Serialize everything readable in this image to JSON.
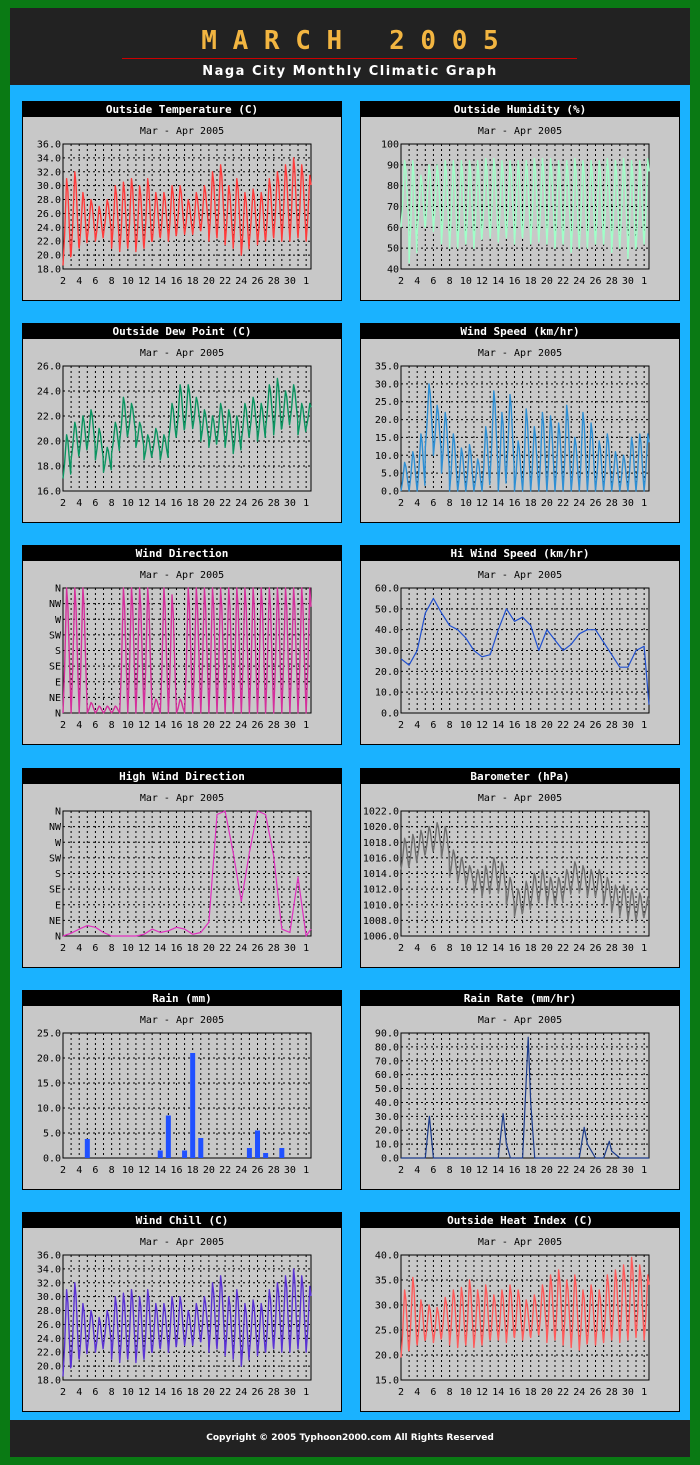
{
  "header": {
    "title": "M A R C H   2 0 0 5",
    "subtitle": "Naga City Monthly Climatic Graph"
  },
  "footer": {
    "copyright": "Copyright © 2005  Typhoon2000.com   All Rights Reserved"
  },
  "colors": {
    "background": "#0a7a14",
    "panel_area": "#1ab2ff",
    "header": "#222222",
    "title": "#f2b541"
  },
  "chart_data": [
    {
      "id": "temp",
      "title": "Outside Temperature (C)",
      "subtitle": "Mar - Apr  2005",
      "type": "line",
      "color": "#ff3b3b",
      "x_ticks": [
        "2",
        "4",
        "6",
        "8",
        "10",
        "12",
        "14",
        "16",
        "18",
        "20",
        "22",
        "24",
        "26",
        "28",
        "30",
        "1"
      ],
      "y_ticks": [
        "18.0",
        "20.0",
        "22.0",
        "24.0",
        "26.0",
        "28.0",
        "30.0",
        "32.0",
        "34.0",
        "36.0"
      ],
      "ylim": [
        18,
        36
      ],
      "grid": true,
      "daily_low": [
        18.5,
        20.0,
        21.0,
        22.5,
        22.0,
        23.0,
        21.0,
        20.5,
        21.0,
        20.5,
        21.0,
        22.0,
        22.5,
        22.0,
        23.0,
        23.0,
        23.0,
        23.5,
        22.0,
        22.5,
        21.5,
        21.0,
        20.0,
        22.0,
        21.5,
        22.0,
        22.5,
        22.0,
        22.0,
        22.5,
        22.0
      ],
      "daily_high": [
        31.0,
        32.0,
        29.0,
        28.0,
        27.0,
        28.0,
        30.0,
        30.5,
        31.0,
        30.0,
        31.0,
        29.0,
        29.0,
        30.0,
        30.0,
        28.0,
        29.0,
        30.0,
        32.0,
        33.0,
        30.0,
        31.0,
        29.0,
        29.5,
        29.0,
        31.0,
        32.0,
        33.0,
        34.0,
        33.0,
        31.5
      ]
    },
    {
      "id": "humidity",
      "title": "Outside Humidity (%)",
      "subtitle": "Mar - Apr  2005",
      "type": "line",
      "color": "#a0ffc8",
      "x_ticks": [
        "2",
        "4",
        "6",
        "8",
        "10",
        "12",
        "14",
        "16",
        "18",
        "20",
        "22",
        "24",
        "26",
        "28",
        "30",
        "1"
      ],
      "y_ticks": [
        "40",
        "50",
        "60",
        "70",
        "80",
        "90",
        "100"
      ],
      "ylim": [
        40,
        100
      ],
      "grid": true,
      "daily_low": [
        60,
        43,
        58,
        60,
        58,
        52,
        50,
        50,
        52,
        50,
        55,
        55,
        53,
        55,
        52,
        55,
        52,
        53,
        52,
        50,
        52,
        48,
        50,
        50,
        52,
        52,
        48,
        50,
        45,
        50,
        52
      ],
      "daily_high": [
        92,
        92,
        85,
        90,
        90,
        92,
        92,
        92,
        92,
        92,
        93,
        93,
        92,
        92,
        92,
        92,
        93,
        93,
        93,
        92,
        92,
        93,
        92,
        92,
        92,
        93,
        92,
        93,
        92,
        92,
        93
      ]
    },
    {
      "id": "dewpoint",
      "title": "Outside Dew Point (C)",
      "subtitle": "Mar - Apr  2005",
      "type": "line",
      "color": "#0a9460",
      "x_ticks": [
        "2",
        "4",
        "6",
        "8",
        "10",
        "12",
        "14",
        "16",
        "18",
        "20",
        "22",
        "24",
        "26",
        "28",
        "30",
        "1"
      ],
      "y_ticks": [
        "16.0",
        "18.0",
        "20.0",
        "22.0",
        "24.0",
        "26.0"
      ],
      "ylim": [
        16,
        26
      ],
      "grid": true,
      "daily_low": [
        17.0,
        18.5,
        19.0,
        19.5,
        18.5,
        17.5,
        19.0,
        20.0,
        20.5,
        19.5,
        18.5,
        19.0,
        18.5,
        20.0,
        20.5,
        21.0,
        21.0,
        20.0,
        19.5,
        20.0,
        19.5,
        19.0,
        20.0,
        20.5,
        20.0,
        21.0,
        20.5,
        21.0,
        21.5,
        20.5,
        21.0
      ],
      "daily_high": [
        20.5,
        21.5,
        22.0,
        22.5,
        21.0,
        19.5,
        21.5,
        23.5,
        23.0,
        21.5,
        20.5,
        21.0,
        20.5,
        23.0,
        24.5,
        24.5,
        23.5,
        22.5,
        22.0,
        23.0,
        22.5,
        22.0,
        23.0,
        23.5,
        23.0,
        24.5,
        25.0,
        24.0,
        24.5,
        23.0,
        23.0
      ]
    },
    {
      "id": "windspeed",
      "title": "Wind Speed (km/hr)",
      "subtitle": "Mar - Apr  2005",
      "type": "line",
      "color": "#2e8fd4",
      "x_ticks": [
        "2",
        "4",
        "6",
        "8",
        "10",
        "12",
        "14",
        "16",
        "18",
        "20",
        "22",
        "24",
        "26",
        "28",
        "30",
        "1"
      ],
      "y_ticks": [
        "0.0",
        "5.0",
        "10.0",
        "15.0",
        "20.0",
        "25.0",
        "30.0",
        "35.0"
      ],
      "ylim": [
        0,
        35
      ],
      "grid": true,
      "daily_low": [
        0,
        0,
        0,
        12,
        10,
        5,
        0,
        0,
        0,
        0,
        0,
        5,
        0,
        5,
        0,
        0,
        0,
        0,
        0,
        0,
        0,
        0,
        0,
        0,
        0,
        0,
        0,
        0,
        0,
        0,
        0
      ],
      "daily_high": [
        8,
        11,
        16,
        30,
        24,
        22,
        16,
        12,
        13,
        9,
        18,
        28,
        22,
        27,
        14,
        23,
        18,
        22,
        21,
        19,
        24,
        15,
        22,
        19,
        14,
        16,
        11,
        10,
        15,
        16,
        16
      ]
    },
    {
      "id": "winddir",
      "title": "Wind Direction",
      "subtitle": "Mar - Apr  2005",
      "type": "line",
      "color": "#d4309c",
      "x_ticks": [
        "2",
        "4",
        "6",
        "8",
        "10",
        "12",
        "14",
        "16",
        "18",
        "20",
        "22",
        "24",
        "26",
        "28",
        "30",
        "1"
      ],
      "y_ticks": [
        "N",
        "NE",
        "E",
        "SE",
        "S",
        "SW",
        "W",
        "NW",
        "N"
      ],
      "ylim": [
        0,
        360
      ],
      "grid": true,
      "daily_low": [
        0,
        0,
        0,
        0,
        0,
        0,
        0,
        0,
        0,
        0,
        0,
        0,
        0,
        0,
        0,
        0,
        0,
        0,
        0,
        0,
        0,
        0,
        0,
        0,
        0,
        0,
        0,
        0,
        0,
        0,
        0
      ],
      "daily_high": [
        360,
        360,
        360,
        30,
        20,
        20,
        20,
        360,
        360,
        360,
        360,
        40,
        360,
        340,
        40,
        360,
        360,
        360,
        360,
        360,
        360,
        360,
        360,
        360,
        360,
        360,
        360,
        360,
        360,
        360,
        360
      ]
    },
    {
      "id": "hiwind",
      "title": "Hi Wind Speed (km/hr)",
      "subtitle": "Mar - Apr  2005",
      "type": "line",
      "color": "#2050d0",
      "x_ticks": [
        "2",
        "4",
        "6",
        "8",
        "10",
        "12",
        "14",
        "16",
        "18",
        "20",
        "22",
        "24",
        "26",
        "28",
        "30",
        "1"
      ],
      "y_ticks": [
        "0.0",
        "10.0",
        "20.0",
        "30.0",
        "40.0",
        "50.0",
        "60.0"
      ],
      "ylim": [
        0,
        60
      ],
      "grid": true,
      "x": [
        0,
        1,
        2,
        3,
        4,
        5,
        6,
        7,
        8,
        9,
        10,
        11,
        12,
        13,
        14,
        15,
        16,
        17,
        18,
        19,
        20,
        21,
        22,
        23,
        24,
        25,
        26,
        27,
        28,
        29,
        30,
        30.6
      ],
      "values": [
        26,
        23,
        30,
        48,
        55,
        48,
        42,
        40,
        36,
        30,
        27,
        28,
        40,
        50,
        44,
        46,
        42,
        30,
        40,
        35,
        30,
        33,
        38,
        40,
        40,
        34,
        28,
        22,
        22,
        30,
        32,
        4
      ]
    },
    {
      "id": "hiwinddir",
      "title": "High Wind Direction",
      "subtitle": "Mar - Apr  2005",
      "type": "line",
      "color": "#e030c0",
      "x_ticks": [
        "2",
        "4",
        "6",
        "8",
        "10",
        "12",
        "14",
        "16",
        "18",
        "20",
        "22",
        "24",
        "26",
        "28",
        "30",
        "1"
      ],
      "y_ticks": [
        "N",
        "NE",
        "E",
        "SE",
        "S",
        "SW",
        "W",
        "NW",
        "N"
      ],
      "ylim": [
        0,
        360
      ],
      "grid": true,
      "x": [
        0,
        1,
        2,
        3,
        4,
        5,
        6,
        7,
        8,
        9,
        10,
        11,
        12,
        13,
        14,
        15,
        16,
        17,
        18,
        19,
        20,
        21,
        22,
        23,
        24,
        25,
        26,
        27,
        28,
        29,
        30,
        30.6
      ],
      "values": [
        0,
        8,
        20,
        30,
        25,
        10,
        0,
        0,
        0,
        0,
        5,
        20,
        10,
        15,
        25,
        20,
        5,
        10,
        40,
        350,
        360,
        240,
        100,
        240,
        360,
        350,
        230,
        20,
        10,
        170,
        0,
        20
      ]
    },
    {
      "id": "barometer",
      "title": "Barometer (hPa)",
      "subtitle": "Mar - Apr  2005",
      "type": "line",
      "color": "#707070",
      "x_ticks": [
        "2",
        "4",
        "6",
        "8",
        "10",
        "12",
        "14",
        "16",
        "18",
        "20",
        "22",
        "24",
        "26",
        "28",
        "30",
        "1"
      ],
      "y_ticks": [
        "1006.0",
        "1008.0",
        "1010.0",
        "1012.0",
        "1014.0",
        "1016.0",
        "1018.0",
        "1020.0",
        "1022.0"
      ],
      "ylim": [
        1006,
        1022
      ],
      "grid": true,
      "daily_low": [
        1014.5,
        1015.0,
        1016.0,
        1016.5,
        1017.0,
        1016.0,
        1013.5,
        1013.0,
        1012.5,
        1011.5,
        1011.0,
        1012.0,
        1011.5,
        1010.0,
        1008.5,
        1009.0,
        1010.0,
        1010.5,
        1010.0,
        1010.0,
        1011.0,
        1012.0,
        1011.5,
        1011.0,
        1011.0,
        1010.0,
        1009.0,
        1008.5,
        1008.0,
        1008.0,
        1008.5
      ],
      "daily_high": [
        1018.5,
        1019.0,
        1019.5,
        1020.0,
        1020.5,
        1020.0,
        1017.0,
        1016.0,
        1015.0,
        1014.5,
        1015.0,
        1016.0,
        1015.5,
        1013.5,
        1012.0,
        1013.0,
        1014.0,
        1014.5,
        1013.5,
        1013.5,
        1014.5,
        1015.5,
        1015.0,
        1014.5,
        1014.5,
        1013.5,
        1012.5,
        1012.5,
        1012.0,
        1011.5,
        1011.0
      ]
    },
    {
      "id": "rain",
      "title": "Rain (mm)",
      "subtitle": "Mar - Apr  2005",
      "type": "bar",
      "color": "#2050ff",
      "x_ticks": [
        "2",
        "4",
        "6",
        "8",
        "10",
        "12",
        "14",
        "16",
        "18",
        "20",
        "22",
        "24",
        "26",
        "28",
        "30",
        "1"
      ],
      "y_ticks": [
        "0.0",
        "5.0",
        "10.0",
        "15.0",
        "20.0",
        "25.0"
      ],
      "ylim": [
        0,
        25
      ],
      "grid": true,
      "x": [
        0,
        1,
        2,
        3,
        4,
        5,
        6,
        7,
        8,
        9,
        10,
        11,
        12,
        13,
        14,
        15,
        16,
        17,
        18,
        19,
        20,
        21,
        22,
        23,
        24,
        25,
        26,
        27,
        28,
        29,
        30
      ],
      "values": [
        0,
        0,
        0,
        3.8,
        0,
        0,
        0,
        0,
        0,
        0,
        0,
        0,
        1.5,
        8.5,
        0,
        1.5,
        21,
        4,
        0,
        0,
        0,
        0,
        0,
        2,
        5.5,
        1,
        0,
        2,
        0,
        0,
        0
      ]
    },
    {
      "id": "rainrate",
      "title": "Rain Rate (mm/hr)",
      "subtitle": "Mar - Apr  2005",
      "type": "line",
      "color": "#1a3a8a",
      "x_ticks": [
        "2",
        "4",
        "6",
        "8",
        "10",
        "12",
        "14",
        "16",
        "18",
        "20",
        "22",
        "24",
        "26",
        "28",
        "30",
        "1"
      ],
      "y_ticks": [
        "0.0",
        "10.0",
        "20.0",
        "30.0",
        "40.0",
        "50.0",
        "60.0",
        "70.0",
        "80.0",
        "90.0"
      ],
      "ylim": [
        0,
        90
      ],
      "grid": true,
      "x": [
        0,
        1,
        2,
        3,
        3.5,
        4,
        5,
        6,
        7,
        8,
        9,
        10,
        11,
        12,
        12.6,
        13,
        13.5,
        14,
        15,
        15.7,
        16,
        16.5,
        17,
        18,
        19,
        20,
        21,
        22,
        22.6,
        23,
        24,
        25,
        25.7,
        26,
        27,
        28,
        29,
        30,
        30.6
      ],
      "values": [
        0,
        0,
        0,
        0,
        30,
        0,
        0,
        0,
        0,
        0,
        0,
        0,
        0,
        0,
        32,
        10,
        0,
        0,
        0,
        87,
        40,
        0,
        0,
        0,
        0,
        0,
        0,
        0,
        22,
        10,
        0,
        0,
        12,
        5,
        0,
        0,
        0,
        0,
        0
      ]
    },
    {
      "id": "windchill",
      "title": "Wind Chill (C)",
      "subtitle": "Mar - Apr  2005",
      "type": "line",
      "color": "#5a32d4",
      "x_ticks": [
        "2",
        "4",
        "6",
        "8",
        "10",
        "12",
        "14",
        "16",
        "18",
        "20",
        "22",
        "24",
        "26",
        "28",
        "30",
        "1"
      ],
      "y_ticks": [
        "18.0",
        "20.0",
        "22.0",
        "24.0",
        "26.0",
        "28.0",
        "30.0",
        "32.0",
        "34.0",
        "36.0"
      ],
      "ylim": [
        18,
        36
      ],
      "grid": true,
      "daily_low": [
        18.5,
        20.0,
        21.0,
        22.5,
        22.0,
        23.0,
        21.0,
        20.5,
        21.0,
        20.5,
        21.0,
        22.0,
        22.5,
        22.0,
        23.0,
        23.0,
        23.0,
        23.5,
        22.0,
        22.5,
        21.5,
        21.0,
        20.0,
        22.0,
        21.5,
        22.0,
        22.5,
        22.0,
        22.0,
        22.5,
        22.0
      ],
      "daily_high": [
        31.0,
        32.0,
        29.0,
        28.0,
        27.0,
        28.0,
        30.0,
        30.5,
        31.0,
        30.0,
        31.0,
        29.0,
        29.0,
        30.0,
        30.0,
        28.0,
        29.0,
        30.0,
        32.0,
        33.0,
        30.0,
        31.0,
        29.0,
        29.5,
        29.0,
        31.0,
        32.0,
        33.0,
        34.0,
        33.0,
        31.5
      ]
    },
    {
      "id": "heatindex",
      "title": "Outside Heat Index (C)",
      "subtitle": "Mar - Apr  2005",
      "type": "line",
      "color": "#ff5a5a",
      "x_ticks": [
        "2",
        "4",
        "6",
        "8",
        "10",
        "12",
        "14",
        "16",
        "18",
        "20",
        "22",
        "24",
        "26",
        "28",
        "30",
        "1"
      ],
      "y_ticks": [
        "15.0",
        "20.0",
        "25.0",
        "30.0",
        "35.0",
        "40.0"
      ],
      "ylim": [
        15,
        40
      ],
      "grid": true,
      "daily_low": [
        19.5,
        21.0,
        22.0,
        23.0,
        22.5,
        23.5,
        22.0,
        21.5,
        22.0,
        21.5,
        22.0,
        23.0,
        23.0,
        22.5,
        23.5,
        23.0,
        23.5,
        24.0,
        22.5,
        23.0,
        22.0,
        21.5,
        21.0,
        22.5,
        22.0,
        22.5,
        23.0,
        22.5,
        23.0,
        23.5,
        23.0
      ],
      "daily_high": [
        33.0,
        35.5,
        31.0,
        30.0,
        29.5,
        31.5,
        33.0,
        33.5,
        35.0,
        33.0,
        34.0,
        32.0,
        33.0,
        34.0,
        33.0,
        31.0,
        32.0,
        34.0,
        36.0,
        37.0,
        35.0,
        36.0,
        33.0,
        34.0,
        33.0,
        36.0,
        37.0,
        38.0,
        39.5,
        38.0,
        36.0
      ]
    }
  ]
}
